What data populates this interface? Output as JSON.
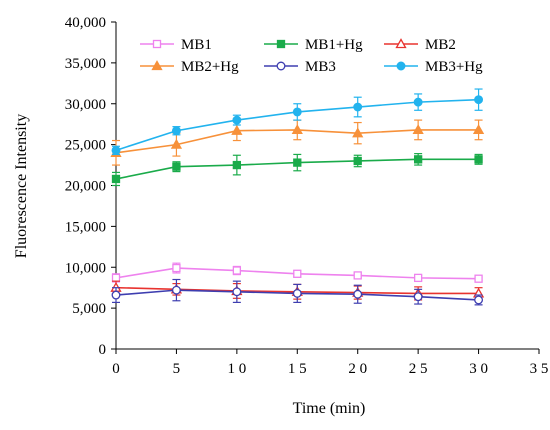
{
  "chart_data": {
    "type": "line",
    "title": "",
    "xlabel": "Time (min)",
    "ylabel": "Fluorescence Intensity",
    "xlim": [
      0,
      35
    ],
    "ylim": [
      0,
      40000
    ],
    "xticks": [
      0,
      5,
      10,
      15,
      20,
      25,
      30,
      35
    ],
    "xtick_labels": [
      "0",
      "5",
      "1 0",
      "1 5",
      "2 0",
      "2 5",
      "3 0",
      "3 5"
    ],
    "yticks": [
      0,
      5000,
      10000,
      15000,
      20000,
      25000,
      30000,
      35000,
      40000
    ],
    "ytick_labels": [
      "0",
      "5,000",
      "10,000",
      "15,000",
      "20,000",
      "25,000",
      "30,000",
      "35,000",
      "40,000"
    ],
    "grid": false,
    "legend_position": "top",
    "x": [
      0,
      5,
      10,
      15,
      20,
      25,
      30
    ],
    "series": [
      {
        "name": "MB1",
        "color": "#ee82ee",
        "marker": "square-open",
        "values": [
          8700,
          9900,
          9600,
          9200,
          9000,
          8700,
          8600
        ],
        "errors": [
          500,
          600,
          500,
          400,
          300,
          300,
          200
        ]
      },
      {
        "name": "MB1+Hg",
        "color": "#1aab4a",
        "marker": "square-filled",
        "values": [
          20800,
          22300,
          22500,
          22800,
          23000,
          23200,
          23200
        ],
        "errors": [
          800,
          600,
          1200,
          1000,
          700,
          700,
          600
        ]
      },
      {
        "name": "MB2",
        "color": "#e8332f",
        "marker": "triangle-open",
        "values": [
          7500,
          7300,
          7100,
          7000,
          6900,
          6800,
          6800
        ],
        "errors": [
          800,
          700,
          900,
          900,
          800,
          800,
          700
        ]
      },
      {
        "name": "MB2+Hg",
        "color": "#f7913a",
        "marker": "triangle-filled",
        "values": [
          24000,
          25000,
          26700,
          26800,
          26400,
          26800,
          26800
        ],
        "errors": [
          1500,
          1400,
          1200,
          1200,
          1300,
          1200,
          1200
        ]
      },
      {
        "name": "MB3",
        "color": "#3e3eb0",
        "marker": "circle-open",
        "values": [
          6600,
          7200,
          7000,
          6800,
          6700,
          6400,
          6000
        ],
        "errors": [
          900,
          1300,
          1300,
          1100,
          1100,
          900,
          600
        ]
      },
      {
        "name": "MB3+Hg",
        "color": "#22b3ee",
        "marker": "circle-filled",
        "values": [
          24300,
          26700,
          28000,
          29000,
          29600,
          30200,
          30500
        ],
        "errors": [
          500,
          500,
          600,
          1000,
          1200,
          1000,
          1300
        ]
      }
    ]
  }
}
